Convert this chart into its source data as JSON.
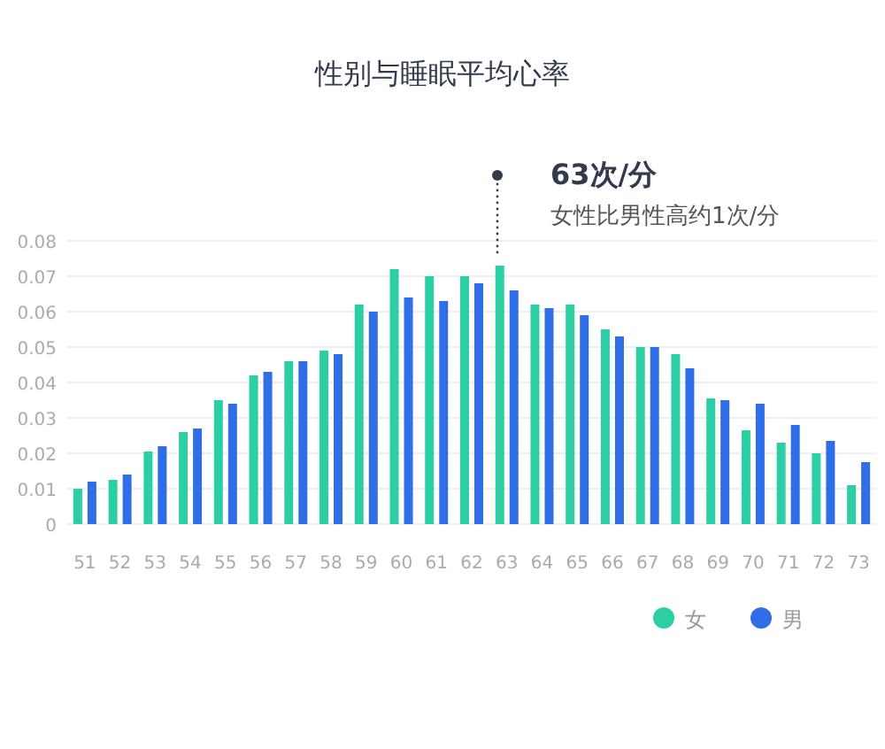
{
  "chart_data": {
    "type": "bar",
    "title": "性别与睡眠平均心率",
    "categories": [
      "51",
      "52",
      "53",
      "54",
      "55",
      "56",
      "57",
      "58",
      "59",
      "60",
      "61",
      "62",
      "63",
      "64",
      "65",
      "66",
      "67",
      "68",
      "69",
      "70",
      "71",
      "72",
      "73"
    ],
    "series": [
      {
        "name": "女",
        "color": "#2ccfa4",
        "values": [
          0.01,
          0.0125,
          0.0205,
          0.026,
          0.035,
          0.042,
          0.046,
          0.049,
          0.062,
          0.072,
          0.07,
          0.07,
          0.073,
          0.062,
          0.062,
          0.055,
          0.05,
          0.048,
          0.0355,
          0.0265,
          0.023,
          0.02,
          0.011
        ]
      },
      {
        "name": "男",
        "color": "#2f6ee6",
        "values": [
          0.012,
          0.014,
          0.022,
          0.027,
          0.034,
          0.043,
          0.046,
          0.048,
          0.06,
          0.064,
          0.063,
          0.068,
          0.066,
          0.061,
          0.059,
          0.053,
          0.05,
          0.044,
          0.035,
          0.034,
          0.028,
          0.0235,
          0.0175
        ]
      }
    ],
    "ylim": [
      0,
      0.08
    ],
    "yticks": [
      0,
      0.01,
      0.02,
      0.03,
      0.04,
      0.05,
      0.06,
      0.07,
      0.08
    ],
    "grid": "y",
    "legend": "bottom right",
    "annotations": [
      "63次/分",
      "女性比男性高约1次/分"
    ]
  }
}
